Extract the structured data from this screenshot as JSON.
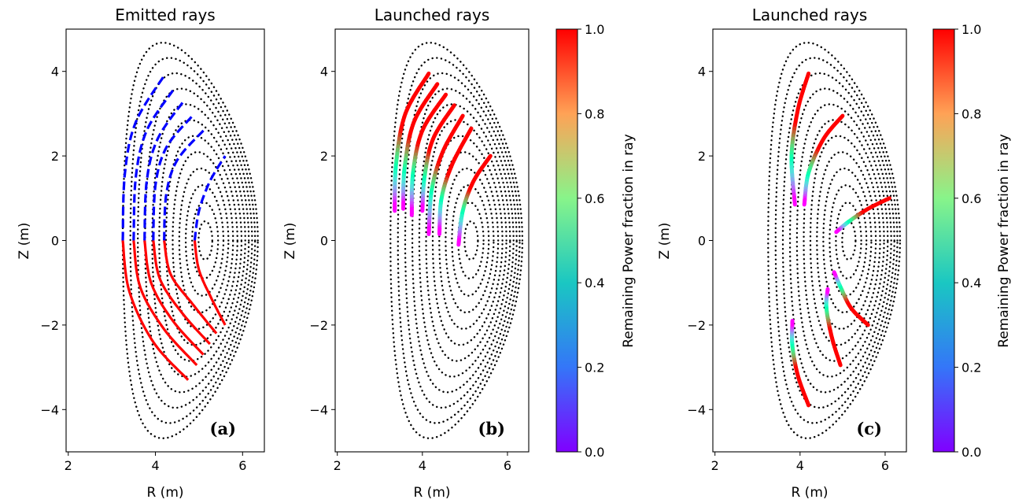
{
  "figure": {
    "panels": [
      {
        "id": "a",
        "title": "Emitted rays",
        "label": "(a)"
      },
      {
        "id": "b",
        "title": "Launched rays",
        "label": "(b)"
      },
      {
        "id": "c",
        "title": "Launched rays",
        "label": "(c)"
      }
    ]
  },
  "chart_data": [
    {
      "type": "line",
      "title": "Emitted rays",
      "xlabel": "R (m)",
      "ylabel": "Z (m)",
      "xlim": [
        1.95,
        6.5
      ],
      "ylim": [
        -5.0,
        5.0
      ],
      "xticks": [
        2,
        4,
        6
      ],
      "yticks": [
        -4,
        -2,
        0,
        2,
        4
      ],
      "annotation": "(a)",
      "flux_surfaces": {
        "style": "dotted",
        "color": "#000000",
        "count": 12
      },
      "series": [
        {
          "color": "#0000ff",
          "style": "dashed",
          "points": [
            [
              3.25,
              0.0
            ],
            [
              3.3,
              1.6
            ],
            [
              3.55,
              2.8
            ],
            [
              4.2,
              3.9
            ]
          ]
        },
        {
          "color": "#0000ff",
          "style": "dashed",
          "points": [
            [
              3.5,
              0.0
            ],
            [
              3.55,
              1.5
            ],
            [
              3.8,
              2.6
            ],
            [
              4.4,
              3.55
            ]
          ]
        },
        {
          "color": "#0000ff",
          "style": "dashed",
          "points": [
            [
              3.75,
              0.0
            ],
            [
              3.8,
              1.4
            ],
            [
              4.05,
              2.4
            ],
            [
              4.65,
              3.3
            ]
          ]
        },
        {
          "color": "#0000ff",
          "style": "dashed",
          "points": [
            [
              3.95,
              0.0
            ],
            [
              4.0,
              1.3
            ],
            [
              4.25,
              2.2
            ],
            [
              4.85,
              2.95
            ]
          ]
        },
        {
          "color": "#0000ff",
          "style": "dashed",
          "points": [
            [
              4.2,
              0.0
            ],
            [
              4.25,
              1.1
            ],
            [
              4.5,
              1.9
            ],
            [
              5.1,
              2.6
            ]
          ]
        },
        {
          "color": "#0000ff",
          "style": "dashed",
          "points": [
            [
              4.9,
              0.0
            ],
            [
              5.0,
              0.7
            ],
            [
              5.25,
              1.4
            ],
            [
              5.6,
              2.0
            ]
          ]
        },
        {
          "color": "#ff0000",
          "style": "solid",
          "points": [
            [
              3.25,
              0.0
            ],
            [
              3.4,
              -1.2
            ],
            [
              3.95,
              -2.4
            ],
            [
              4.75,
              -3.3
            ]
          ]
        },
        {
          "color": "#ff0000",
          "style": "solid",
          "points": [
            [
              3.5,
              0.0
            ],
            [
              3.65,
              -1.1
            ],
            [
              4.2,
              -2.1
            ],
            [
              4.95,
              -2.95
            ]
          ]
        },
        {
          "color": "#ff0000",
          "style": "solid",
          "points": [
            [
              3.75,
              0.0
            ],
            [
              3.9,
              -1.0
            ],
            [
              4.4,
              -1.9
            ],
            [
              5.1,
              -2.7
            ]
          ]
        },
        {
          "color": "#ff0000",
          "style": "solid",
          "points": [
            [
              3.95,
              0.0
            ],
            [
              4.1,
              -0.9
            ],
            [
              4.6,
              -1.7
            ],
            [
              5.25,
              -2.45
            ]
          ]
        },
        {
          "color": "#ff0000",
          "style": "solid",
          "points": [
            [
              4.2,
              0.0
            ],
            [
              4.35,
              -0.8
            ],
            [
              4.85,
              -1.5
            ],
            [
              5.4,
              -2.2
            ]
          ]
        },
        {
          "color": "#ff0000",
          "style": "solid",
          "points": [
            [
              4.9,
              0.0
            ],
            [
              5.0,
              -0.7
            ],
            [
              5.3,
              -1.4
            ],
            [
              5.6,
              -2.0
            ]
          ]
        }
      ]
    },
    {
      "type": "line",
      "title": "Launched rays",
      "xlabel": "R (m)",
      "ylabel": "Z (m)",
      "xlim": [
        1.95,
        6.5
      ],
      "ylim": [
        -5.0,
        5.0
      ],
      "xticks": [
        2,
        4,
        6
      ],
      "yticks": [
        -4,
        -2,
        0,
        2,
        4
      ],
      "annotation": "(b)",
      "colorbar": {
        "label": "Remaining Power fraction in ray",
        "min": 0.0,
        "max": 1.0,
        "ticks": [
          0.0,
          0.2,
          0.4,
          0.6,
          0.8,
          1.0
        ],
        "colormap": "rainbow"
      },
      "flux_surfaces": {
        "style": "dotted",
        "color": "#000000",
        "count": 12
      },
      "series": [
        {
          "colormapped": true,
          "points": [
            [
              4.15,
              3.95
            ],
            [
              3.6,
              3.0
            ],
            [
              3.38,
              1.8
            ],
            [
              3.35,
              0.7
            ]
          ]
        },
        {
          "colormapped": true,
          "points": [
            [
              4.35,
              3.7
            ],
            [
              3.8,
              2.8
            ],
            [
              3.58,
              1.7
            ],
            [
              3.55,
              0.75
            ]
          ]
        },
        {
          "colormapped": true,
          "points": [
            [
              4.55,
              3.45
            ],
            [
              4.0,
              2.6
            ],
            [
              3.78,
              1.6
            ],
            [
              3.75,
              0.6
            ]
          ]
        },
        {
          "colormapped": true,
          "points": [
            [
              4.75,
              3.2
            ],
            [
              4.25,
              2.4
            ],
            [
              4.05,
              1.5
            ],
            [
              4.0,
              0.7
            ]
          ]
        },
        {
          "colormapped": true,
          "points": [
            [
              4.95,
              2.95
            ],
            [
              4.48,
              2.1
            ],
            [
              4.22,
              1.2
            ],
            [
              4.15,
              0.15
            ]
          ]
        },
        {
          "colormapped": true,
          "points": [
            [
              5.15,
              2.65
            ],
            [
              4.7,
              1.8
            ],
            [
              4.45,
              1.0
            ],
            [
              4.4,
              0.15
            ]
          ]
        },
        {
          "colormapped": true,
          "points": [
            [
              5.6,
              2.0
            ],
            [
              5.2,
              1.4
            ],
            [
              4.95,
              0.7
            ],
            [
              4.85,
              -0.1
            ]
          ]
        }
      ]
    },
    {
      "type": "line",
      "title": "Launched rays",
      "xlabel": "R (m)",
      "ylabel": "Z (m)",
      "xlim": [
        1.95,
        6.5
      ],
      "ylim": [
        -5.0,
        5.0
      ],
      "xticks": [
        2,
        4,
        6
      ],
      "yticks": [
        -4,
        -2,
        0,
        2,
        4
      ],
      "annotation": "(c)",
      "colorbar": {
        "label": "Remaining Power fraction in ray",
        "min": 0.0,
        "max": 1.0,
        "ticks": [
          0.0,
          0.2,
          0.4,
          0.6,
          0.8,
          1.0
        ],
        "colormap": "rainbow"
      },
      "flux_surfaces": {
        "style": "dotted",
        "color": "#000000",
        "count": 12
      },
      "series": [
        {
          "colormapped": true,
          "points": [
            [
              4.2,
              3.95
            ],
            [
              3.95,
              3.1
            ],
            [
              3.8,
              2.0
            ],
            [
              3.88,
              0.85
            ]
          ]
        },
        {
          "colormapped": true,
          "points": [
            [
              5.0,
              2.95
            ],
            [
              4.55,
              2.4
            ],
            [
              4.2,
              1.6
            ],
            [
              4.1,
              0.85
            ]
          ]
        },
        {
          "colormapped": true,
          "points": [
            [
              6.1,
              1.0
            ],
            [
              5.6,
              0.75
            ],
            [
              5.15,
              0.45
            ],
            [
              4.85,
              0.2
            ]
          ]
        },
        {
          "colormapped": true,
          "points": [
            [
              5.6,
              -2.0
            ],
            [
              5.2,
              -1.6
            ],
            [
              4.95,
              -1.1
            ],
            [
              4.8,
              -0.75
            ]
          ]
        },
        {
          "colormapped": true,
          "points": [
            [
              4.95,
              -2.95
            ],
            [
              4.75,
              -2.3
            ],
            [
              4.62,
              -1.6
            ],
            [
              4.65,
              -1.15
            ]
          ]
        },
        {
          "colormapped": true,
          "points": [
            [
              4.2,
              -3.9
            ],
            [
              3.95,
              -3.2
            ],
            [
              3.82,
              -2.5
            ],
            [
              3.82,
              -1.9
            ]
          ]
        }
      ]
    }
  ]
}
